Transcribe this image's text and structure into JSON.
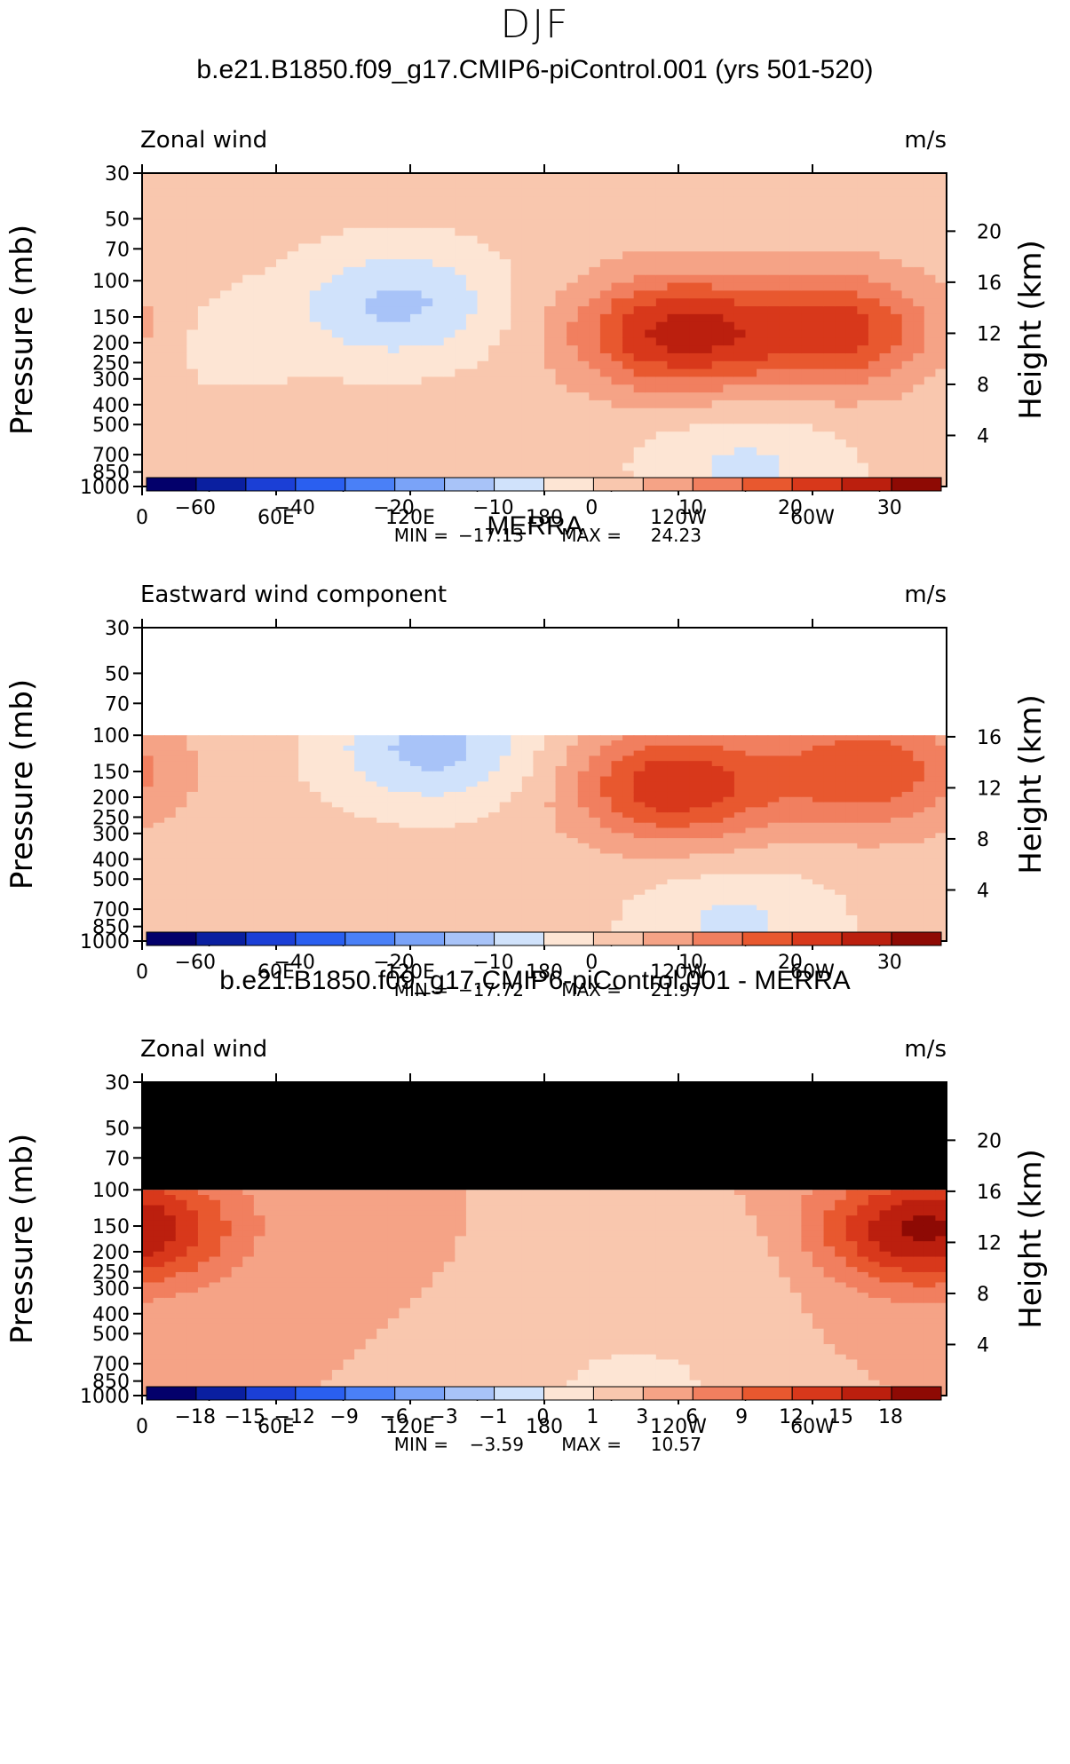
{
  "page_title": "DJF",
  "chart_data": [
    {
      "type": "heatmap",
      "title": "b.e21.B1850.f09_g17.CMIP6-piControl.001 (yrs 501-520)",
      "left_label": "Zonal wind",
      "units": "m/s",
      "ylabel": "Pressure (mb)",
      "ylabel_right": "Height (km)",
      "pressure_ticks": [
        "30",
        "50",
        "70",
        "100",
        "150",
        "200",
        "250",
        "300",
        "400",
        "500",
        "700",
        "850",
        "1000"
      ],
      "height_ticks": [
        "20",
        "16",
        "12",
        "8",
        "4"
      ],
      "lon_ticks": [
        "0",
        "60E",
        "120E",
        "180",
        "120W",
        "60W"
      ],
      "min_label": "MIN =",
      "min_value": "−17.13",
      "max_label": "MAX =",
      "max_value": "24.23",
      "stats_value_min": -17.13,
      "stats_value_max": 24.23,
      "ylim_mb": [
        1000,
        30
      ],
      "colorbar_ticks": [
        "−60",
        "−40",
        "−20",
        "−10",
        "0",
        "10",
        "20",
        "30"
      ],
      "colorbar_levels": [
        -70,
        -60,
        -50,
        -40,
        -30,
        -20,
        -15,
        -10,
        -5,
        0,
        5,
        10,
        15,
        20,
        25,
        30,
        35
      ],
      "features": [
        {
          "lon": 115,
          "p": 130,
          "value": -13
        },
        {
          "lon": 238,
          "p": 180,
          "value": 24
        },
        {
          "lon": 312,
          "p": 175,
          "value": 20
        },
        {
          "lon": 270,
          "p": 800,
          "value": -8
        },
        {
          "lon": 30,
          "p": 200,
          "value": -4
        }
      ]
    },
    {
      "type": "heatmap",
      "title": "MERRA",
      "left_label": "Eastward wind component",
      "units": "m/s",
      "ylabel": "Pressure (mb)",
      "ylabel_right": "Height (km)",
      "pressure_ticks": [
        "30",
        "50",
        "70",
        "100",
        "150",
        "200",
        "250",
        "300",
        "400",
        "500",
        "700",
        "850",
        "1000"
      ],
      "height_ticks": [
        "16",
        "12",
        "8",
        "4"
      ],
      "lon_ticks": [
        "0",
        "60E",
        "120E",
        "180",
        "120W",
        "60W"
      ],
      "min_label": "MIN =",
      "min_value": "−17.72",
      "max_label": "MAX =",
      "max_value": "21.97",
      "stats_value_min": -17.72,
      "stats_value_max": 21.97,
      "ylim_mb": [
        1000,
        30
      ],
      "data_top_mb": 100,
      "colorbar_ticks": [
        "−60",
        "−40",
        "−20",
        "−10",
        "0",
        "10",
        "20",
        "30"
      ],
      "colorbar_levels": [
        -70,
        -60,
        -50,
        -40,
        -30,
        -20,
        -15,
        -10,
        -5,
        0,
        5,
        10,
        15,
        20,
        25,
        30,
        35
      ],
      "features": [
        {
          "lon": 130,
          "p": 115,
          "value": -14
        },
        {
          "lon": 238,
          "p": 175,
          "value": 22
        },
        {
          "lon": 325,
          "p": 150,
          "value": 17
        },
        {
          "lon": 265,
          "p": 820,
          "value": -8
        }
      ]
    },
    {
      "type": "heatmap",
      "title": "b.e21.B1850.f09_g17.CMIP6-piControl.001 - MERRA",
      "left_label": "Zonal wind",
      "units": "m/s",
      "ylabel": "Pressure (mb)",
      "ylabel_right": "Height (km)",
      "pressure_ticks": [
        "30",
        "50",
        "70",
        "100",
        "150",
        "200",
        "250",
        "300",
        "400",
        "500",
        "700",
        "850",
        "1000"
      ],
      "height_ticks": [
        "20",
        "16",
        "12",
        "8",
        "4"
      ],
      "lon_ticks": [
        "0",
        "60E",
        "120E",
        "180",
        "120W",
        "60W"
      ],
      "min_label": "MIN =",
      "min_value": "−3.59",
      "max_label": "MAX =",
      "max_value": "10.57",
      "stats_value_min": -3.59,
      "stats_value_max": 10.57,
      "ylim_mb": [
        1000,
        30
      ],
      "data_top_mb": 100,
      "colorbar_ticks": [
        "−18",
        "−15",
        "−12",
        "−9",
        "−6",
        "−3",
        "−1",
        "0",
        "1",
        "3",
        "6",
        "9",
        "12",
        "15",
        "18"
      ],
      "colorbar_levels": [
        -21,
        -18,
        -15,
        -12,
        -9,
        -6,
        -3,
        -1,
        0,
        1,
        3,
        6,
        9,
        12,
        15,
        18,
        21
      ],
      "features": [
        {
          "lon": 340,
          "p": 160,
          "value": 10
        },
        {
          "lon": 270,
          "p": 220,
          "value": -2
        },
        {
          "lon": 5,
          "p": 150,
          "value": 7
        },
        {
          "lon": 220,
          "p": 950,
          "value": -3
        }
      ]
    }
  ]
}
